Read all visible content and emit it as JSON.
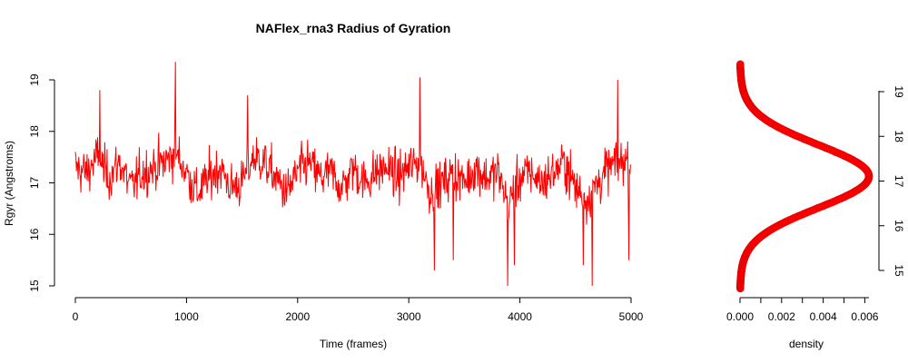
{
  "chart_data": [
    {
      "type": "line",
      "title": "NAFlex_rna3 Radius of Gyration",
      "xlabel": "Time (frames)",
      "ylabel": "Rgyr (Angstroms)",
      "xlim": [
        0,
        5000
      ],
      "ylim": [
        15,
        19.4
      ],
      "x_ticks": [
        0,
        1000,
        2000,
        3000,
        4000,
        5000
      ],
      "y_ticks": [
        15,
        16,
        17,
        18,
        19
      ],
      "grid": false,
      "color": "#ff0000",
      "series": [
        {
          "x": [
            0,
            100,
            200,
            300,
            400,
            500,
            600,
            700,
            800,
            900,
            1000,
            1100,
            1200,
            1300,
            1400,
            1500,
            1600,
            1700,
            1800,
            1900,
            2000,
            2100,
            2200,
            2300,
            2400,
            2500,
            2600,
            2700,
            2800,
            2900,
            3000,
            3100,
            3200,
            3300,
            3400,
            3500,
            3600,
            3700,
            3800,
            3900,
            4000,
            4100,
            4200,
            4300,
            4400,
            4500,
            4600,
            4700,
            4800,
            4900,
            5000
          ],
          "y": [
            17.3,
            17.2,
            17.5,
            17.1,
            17.4,
            16.9,
            17.2,
            17.3,
            17.4,
            17.6,
            17.2,
            16.8,
            17.1,
            17.3,
            16.9,
            17.0,
            17.5,
            17.4,
            17.1,
            16.8,
            17.2,
            17.4,
            17.1,
            17.2,
            16.9,
            17.3,
            17.0,
            17.2,
            17.3,
            17.1,
            17.3,
            17.4,
            16.8,
            17.0,
            17.2,
            17.0,
            17.3,
            17.1,
            17.2,
            16.6,
            17.1,
            17.2,
            17.0,
            17.2,
            17.4,
            16.9,
            16.7,
            17.0,
            17.3,
            17.4,
            17.5
          ]
        }
      ]
    },
    {
      "type": "line",
      "title": "",
      "xlabel": "density",
      "ylabel": "",
      "xlim": [
        0,
        0.0062
      ],
      "ylim": [
        15,
        19.4
      ],
      "x_ticks": [
        "0.000",
        "0.002",
        "0.004",
        "0.006"
      ],
      "y_ticks": [
        15,
        16,
        17,
        18,
        19
      ],
      "grid": false,
      "color": "#ff0000",
      "density_mean": 17.15,
      "density_sd": 0.62
    }
  ]
}
